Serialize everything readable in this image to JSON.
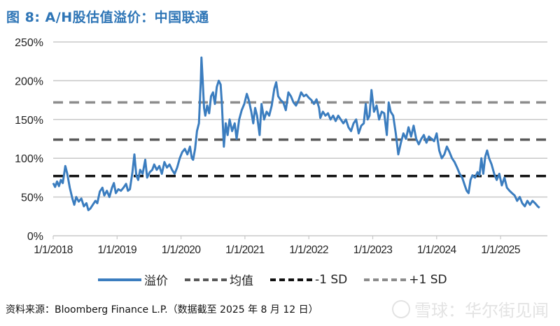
{
  "title": "图 8: A/H股估值溢价：中国联通",
  "legend": {
    "items": [
      {
        "label": "溢价",
        "color": "#3b7dbf",
        "style": "solid"
      },
      {
        "label": "均值",
        "color": "#595959",
        "style": "dashed"
      },
      {
        "label": "-1 SD",
        "color": "#111111",
        "style": "dashed"
      },
      {
        "label": "+1 SD",
        "color": "#8c8c8c",
        "style": "dashed"
      }
    ]
  },
  "source": "资料来源：Bloomberg Finance L.P.（数据截至 2025 年 8 月 12 日）",
  "watermark": "雪球：华尔街见闻",
  "chart_data": {
    "type": "line",
    "title": "图 8: A/H股估值溢价：中国联通",
    "xlabel": "",
    "ylabel": "",
    "ylim": [
      0,
      250
    ],
    "yticks": [
      "0%",
      "50%",
      "100%",
      "150%",
      "200%",
      "250%"
    ],
    "xticks": [
      "1/1/2018",
      "1/1/2019",
      "1/1/2020",
      "1/1/2021",
      "1/1/2022",
      "1/1/2023",
      "1/1/2024",
      "1/1/2025"
    ],
    "grid": true,
    "legend_position": "bottom",
    "reference_lines": [
      {
        "name": "均值",
        "value": 124
      },
      {
        "name": "-1 SD",
        "value": 77
      },
      {
        "name": "+1 SD",
        "value": 172
      }
    ],
    "series": [
      {
        "name": "溢价",
        "points": [
          [
            2018.0,
            68
          ],
          [
            2018.03,
            63
          ],
          [
            2018.06,
            70
          ],
          [
            2018.09,
            64
          ],
          [
            2018.12,
            72
          ],
          [
            2018.15,
            68
          ],
          [
            2018.19,
            90
          ],
          [
            2018.22,
            80
          ],
          [
            2018.26,
            62
          ],
          [
            2018.3,
            48
          ],
          [
            2018.33,
            40
          ],
          [
            2018.36,
            50
          ],
          [
            2018.4,
            44
          ],
          [
            2018.44,
            48
          ],
          [
            2018.48,
            38
          ],
          [
            2018.52,
            42
          ],
          [
            2018.55,
            33
          ],
          [
            2018.58,
            35
          ],
          [
            2018.62,
            40
          ],
          [
            2018.66,
            45
          ],
          [
            2018.69,
            42
          ],
          [
            2018.73,
            57
          ],
          [
            2018.77,
            62
          ],
          [
            2018.8,
            52
          ],
          [
            2018.84,
            58
          ],
          [
            2018.88,
            50
          ],
          [
            2018.92,
            62
          ],
          [
            2018.95,
            68
          ],
          [
            2018.98,
            55
          ],
          [
            2019.02,
            60
          ],
          [
            2019.06,
            58
          ],
          [
            2019.1,
            62
          ],
          [
            2019.14,
            67
          ],
          [
            2019.17,
            58
          ],
          [
            2019.2,
            60
          ],
          [
            2019.24,
            82
          ],
          [
            2019.27,
            105
          ],
          [
            2019.3,
            78
          ],
          [
            2019.33,
            72
          ],
          [
            2019.36,
            85
          ],
          [
            2019.4,
            80
          ],
          [
            2019.44,
            98
          ],
          [
            2019.47,
            75
          ],
          [
            2019.51,
            82
          ],
          [
            2019.55,
            85
          ],
          [
            2019.58,
            92
          ],
          [
            2019.62,
            85
          ],
          [
            2019.66,
            90
          ],
          [
            2019.7,
            80
          ],
          [
            2019.74,
            95
          ],
          [
            2019.78,
            88
          ],
          [
            2019.82,
            92
          ],
          [
            2019.86,
            85
          ],
          [
            2019.9,
            80
          ],
          [
            2019.94,
            88
          ],
          [
            2019.98,
            100
          ],
          [
            2020.02,
            108
          ],
          [
            2020.06,
            112
          ],
          [
            2020.1,
            105
          ],
          [
            2020.14,
            115
          ],
          [
            2020.17,
            100
          ],
          [
            2020.19,
            98
          ],
          [
            2020.22,
            112
          ],
          [
            2020.25,
            135
          ],
          [
            2020.28,
            145
          ],
          [
            2020.31,
            200
          ],
          [
            2020.32,
            230
          ],
          [
            2020.34,
            200
          ],
          [
            2020.36,
            165
          ],
          [
            2020.38,
            155
          ],
          [
            2020.41,
            168
          ],
          [
            2020.44,
            158
          ],
          [
            2020.47,
            180
          ],
          [
            2020.5,
            185
          ],
          [
            2020.53,
            170
          ],
          [
            2020.56,
            192
          ],
          [
            2020.59,
            200
          ],
          [
            2020.62,
            195
          ],
          [
            2020.64,
            170
          ],
          [
            2020.67,
            115
          ],
          [
            2020.7,
            145
          ],
          [
            2020.73,
            130
          ],
          [
            2020.76,
            150
          ],
          [
            2020.8,
            135
          ],
          [
            2020.84,
            145
          ],
          [
            2020.87,
            125
          ],
          [
            2020.91,
            150
          ],
          [
            2020.95,
            162
          ],
          [
            2020.99,
            170
          ],
          [
            2021.03,
            183
          ],
          [
            2021.06,
            175
          ],
          [
            2021.1,
            160
          ],
          [
            2021.13,
            145
          ],
          [
            2021.16,
            165
          ],
          [
            2021.19,
            155
          ],
          [
            2021.23,
            130
          ],
          [
            2021.26,
            170
          ],
          [
            2021.3,
            150
          ],
          [
            2021.34,
            160
          ],
          [
            2021.38,
            155
          ],
          [
            2021.42,
            168
          ],
          [
            2021.46,
            190
          ],
          [
            2021.49,
            198
          ],
          [
            2021.52,
            180
          ],
          [
            2021.56,
            175
          ],
          [
            2021.6,
            172
          ],
          [
            2021.64,
            162
          ],
          [
            2021.68,
            185
          ],
          [
            2021.72,
            180
          ],
          [
            2021.76,
            172
          ],
          [
            2021.8,
            168
          ],
          [
            2021.84,
            175
          ],
          [
            2021.88,
            185
          ],
          [
            2021.92,
            180
          ],
          [
            2021.96,
            182
          ],
          [
            2022.0,
            178
          ],
          [
            2022.04,
            175
          ],
          [
            2022.08,
            170
          ],
          [
            2022.12,
            176
          ],
          [
            2022.16,
            165
          ],
          [
            2022.18,
            152
          ],
          [
            2022.22,
            160
          ],
          [
            2022.26,
            155
          ],
          [
            2022.3,
            158
          ],
          [
            2022.34,
            150
          ],
          [
            2022.38,
            155
          ],
          [
            2022.42,
            148
          ],
          [
            2022.46,
            155
          ],
          [
            2022.5,
            150
          ],
          [
            2022.54,
            145
          ],
          [
            2022.58,
            150
          ],
          [
            2022.62,
            140
          ],
          [
            2022.66,
            135
          ],
          [
            2022.7,
            145
          ],
          [
            2022.74,
            150
          ],
          [
            2022.78,
            132
          ],
          [
            2022.82,
            142
          ],
          [
            2022.86,
            145
          ],
          [
            2022.89,
            170
          ],
          [
            2022.92,
            150
          ],
          [
            2022.95,
            155
          ],
          [
            2022.98,
            188
          ],
          [
            2023.02,
            160
          ],
          [
            2023.06,
            168
          ],
          [
            2023.1,
            150
          ],
          [
            2023.14,
            160
          ],
          [
            2023.18,
            158
          ],
          [
            2023.22,
            130
          ],
          [
            2023.25,
            172
          ],
          [
            2023.28,
            160
          ],
          [
            2023.32,
            155
          ],
          [
            2023.36,
            132
          ],
          [
            2023.4,
            105
          ],
          [
            2023.44,
            120
          ],
          [
            2023.48,
            132
          ],
          [
            2023.52,
            125
          ],
          [
            2023.56,
            140
          ],
          [
            2023.6,
            128
          ],
          [
            2023.64,
            142
          ],
          [
            2023.68,
            125
          ],
          [
            2023.72,
            118
          ],
          [
            2023.76,
            125
          ],
          [
            2023.8,
            130
          ],
          [
            2023.84,
            120
          ],
          [
            2023.88,
            128
          ],
          [
            2023.92,
            125
          ],
          [
            2023.96,
            122
          ],
          [
            2024.0,
            132
          ],
          [
            2024.04,
            110
          ],
          [
            2024.08,
            100
          ],
          [
            2024.12,
            105
          ],
          [
            2024.16,
            115
          ],
          [
            2024.2,
            108
          ],
          [
            2024.24,
            100
          ],
          [
            2024.28,
            95
          ],
          [
            2024.32,
            88
          ],
          [
            2024.36,
            80
          ],
          [
            2024.4,
            75
          ],
          [
            2024.44,
            65
          ],
          [
            2024.47,
            58
          ],
          [
            2024.5,
            55
          ],
          [
            2024.53,
            72
          ],
          [
            2024.56,
            78
          ],
          [
            2024.6,
            75
          ],
          [
            2024.64,
            82
          ],
          [
            2024.67,
            78
          ],
          [
            2024.7,
            100
          ],
          [
            2024.73,
            80
          ],
          [
            2024.76,
            102
          ],
          [
            2024.79,
            110
          ],
          [
            2024.82,
            100
          ],
          [
            2024.86,
            92
          ],
          [
            2024.9,
            80
          ],
          [
            2024.94,
            72
          ],
          [
            2024.98,
            80
          ],
          [
            2025.02,
            65
          ],
          [
            2025.06,
            75
          ],
          [
            2025.1,
            62
          ],
          [
            2025.14,
            58
          ],
          [
            2025.18,
            55
          ],
          [
            2025.22,
            52
          ],
          [
            2025.26,
            45
          ],
          [
            2025.3,
            50
          ],
          [
            2025.34,
            42
          ],
          [
            2025.38,
            38
          ],
          [
            2025.42,
            45
          ],
          [
            2025.46,
            40
          ],
          [
            2025.5,
            45
          ],
          [
            2025.54,
            42
          ],
          [
            2025.58,
            38
          ],
          [
            2025.61,
            36
          ]
        ]
      }
    ]
  }
}
